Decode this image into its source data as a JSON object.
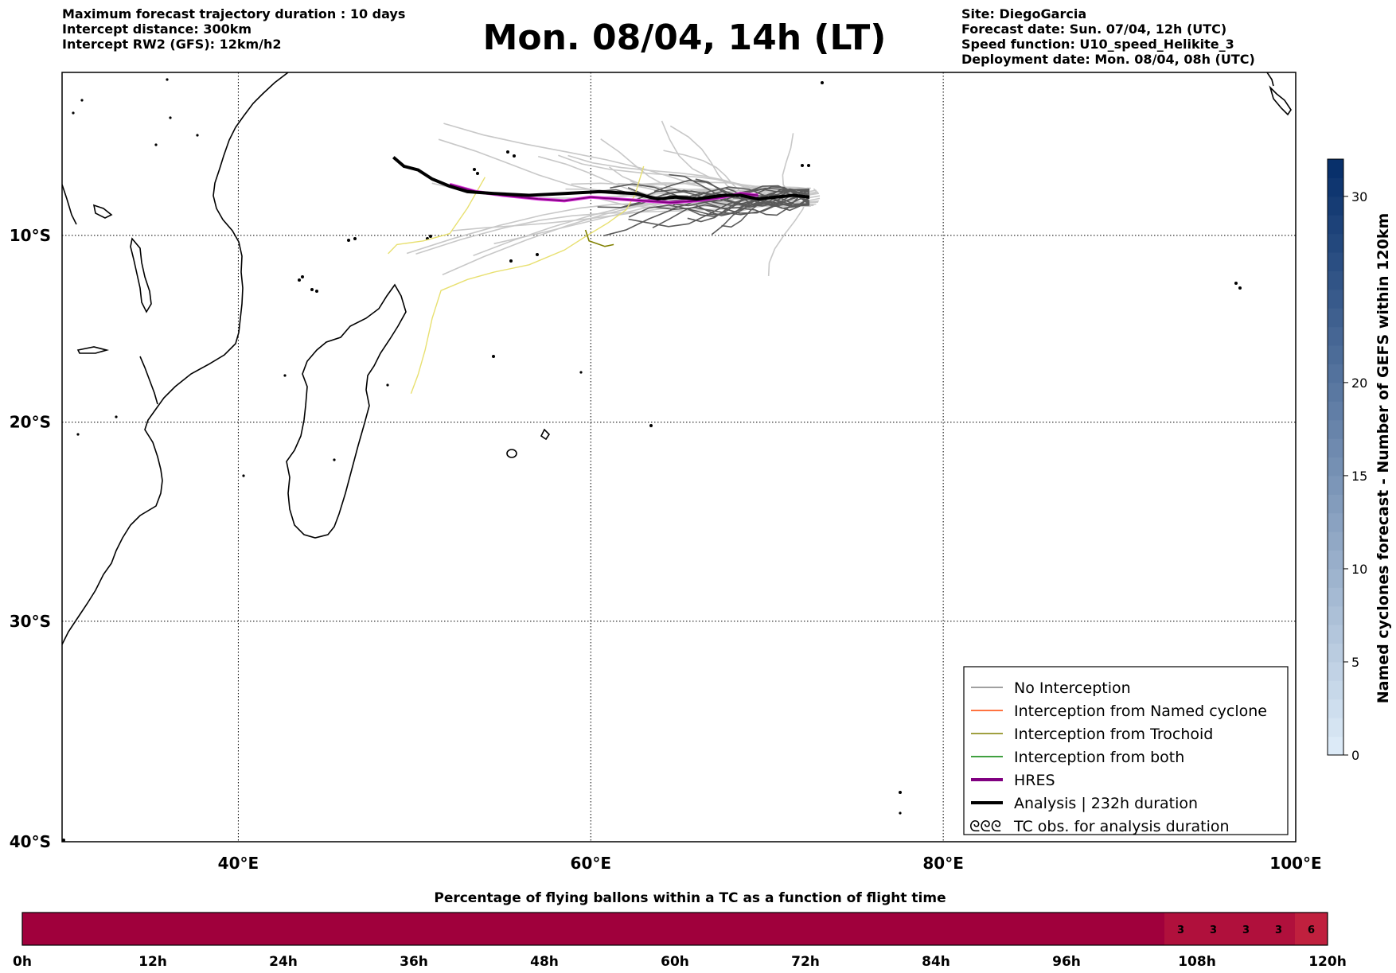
{
  "header": {
    "left_lines": [
      "Maximum forecast trajectory duration : 10 days",
      "Intercept distance: 300km",
      "Intercept RW2 (GFS):  12km/h2"
    ],
    "title": "Mon. 08/04, 14h (LT)",
    "right_lines": [
      "Site: DiegoGarcia",
      "Forecast date: Sun. 07/04, 12h (UTC)",
      "Speed function: U10_speed_Helikite_3",
      "Deployment date: Mon. 08/04, 08h (UTC)"
    ]
  },
  "map": {
    "lon_range": [
      30,
      100
    ],
    "lat_range": [
      -40,
      -1
    ],
    "lon_ticks": [
      {
        "v": 40,
        "label": "40°E"
      },
      {
        "v": 60,
        "label": "60°E"
      },
      {
        "v": 80,
        "label": "80°E"
      },
      {
        "v": 100,
        "label": "100°E"
      }
    ],
    "lat_ticks": [
      {
        "v": -10,
        "label": "10°S"
      },
      {
        "v": -20,
        "label": "20°S"
      },
      {
        "v": -30,
        "label": "30°S"
      },
      {
        "v": -40,
        "label": "40°S"
      }
    ],
    "grid": true,
    "grid_style": "dotted"
  },
  "colors": {
    "no_interception": "#808080",
    "named_cyclone": "#ff4500",
    "trochoid": "#808000",
    "both": "#008000",
    "hres": "#800080",
    "analysis": "#000000",
    "ensemble_light": "#c8c8c8",
    "ensemble_dark": "#5a5a5a",
    "yellow_track": "#e8e070",
    "magenta_track": "#e040e0",
    "timeline_fill": "#a0003c",
    "timeline_light": "#c0203e"
  },
  "legend": {
    "placement": "lower-right",
    "items": [
      {
        "label": "No Interception",
        "color": "#808080",
        "style": "thin"
      },
      {
        "label": "Interception from Named cyclone",
        "color": "#ff4500",
        "style": "thin"
      },
      {
        "label": "Interception from Trochoid",
        "color": "#808000",
        "style": "thin"
      },
      {
        "label": "Interception from both",
        "color": "#008000",
        "style": "thin"
      },
      {
        "label": "HRES",
        "color": "#800080",
        "style": "thick"
      },
      {
        "label": "Analysis | 232h duration",
        "color": "#000000",
        "style": "thick"
      },
      {
        "label": "TC obs. for analysis duration",
        "color": "#000000",
        "style": "symbol"
      }
    ],
    "symbol_glyph": "ᘓᘓᘓ"
  },
  "colorbar": {
    "label": "Named cyclones forecast - Number of GEFS within 120km",
    "ticks": [
      0,
      5,
      10,
      15,
      20,
      30
    ],
    "max": 32,
    "cmap_from": "#dceaf7",
    "cmap_to": "#08306b"
  },
  "tracks": {
    "analysis": [
      [
        48.8,
        -5.7
      ],
      [
        49.4,
        -6.2
      ],
      [
        50.2,
        -6.4
      ],
      [
        51.0,
        -6.9
      ],
      [
        52.0,
        -7.3
      ],
      [
        53.0,
        -7.6
      ],
      [
        54.5,
        -7.7
      ],
      [
        56.5,
        -7.8
      ],
      [
        58.5,
        -7.7
      ],
      [
        60.5,
        -7.6
      ],
      [
        62.5,
        -7.7
      ],
      [
        63.8,
        -8.0
      ],
      [
        64.8,
        -7.9
      ],
      [
        66.0,
        -8.0
      ],
      [
        67.5,
        -7.8
      ],
      [
        68.5,
        -7.8
      ],
      [
        69.5,
        -8.0
      ],
      [
        70.5,
        -7.9
      ],
      [
        71.5,
        -7.8
      ],
      [
        72.4,
        -7.9
      ]
    ],
    "hres": [
      [
        52.0,
        -7.2
      ],
      [
        53.5,
        -7.6
      ],
      [
        55.0,
        -7.8
      ],
      [
        57.0,
        -8.0
      ],
      [
        58.5,
        -8.1
      ],
      [
        60.0,
        -7.9
      ],
      [
        61.5,
        -8.0
      ],
      [
        63.0,
        -8.1
      ],
      [
        64.5,
        -8.2
      ],
      [
        66.0,
        -8.1
      ],
      [
        67.5,
        -7.9
      ],
      [
        68.5,
        -7.7
      ],
      [
        69.5,
        -7.8
      ]
    ],
    "trochoid": [
      [
        59.7,
        -9.7
      ],
      [
        59.9,
        -10.3
      ],
      [
        60.8,
        -10.6
      ],
      [
        61.3,
        -10.5
      ]
    ],
    "yellow": [
      [
        [
          48.5,
          -11.0
        ],
        [
          49.0,
          -10.5
        ],
        [
          50.5,
          -10.3
        ],
        [
          52.0,
          -9.9
        ],
        [
          53.0,
          -8.5
        ],
        [
          54.0,
          -6.8
        ]
      ],
      [
        [
          49.8,
          -18.5
        ],
        [
          50.2,
          -17.5
        ],
        [
          50.6,
          -16.2
        ],
        [
          51.0,
          -14.5
        ],
        [
          51.5,
          -13.0
        ],
        [
          53.0,
          -12.4
        ],
        [
          54.5,
          -12.0
        ],
        [
          56.5,
          -11.6
        ],
        [
          58.5,
          -10.8
        ],
        [
          59.8,
          -10.0
        ],
        [
          61.0,
          -9.3
        ],
        [
          62.0,
          -8.6
        ],
        [
          62.5,
          -7.8
        ],
        [
          63.0,
          -6.2
        ]
      ]
    ]
  },
  "timeline": {
    "title": "Percentage of flying ballons within a TC as a function of flight time",
    "ticks": [
      "0h",
      "12h",
      "24h",
      "36h",
      "48h",
      "60h",
      "72h",
      "84h",
      "96h",
      "108h",
      "120h"
    ],
    "max_hours": 120,
    "dark_until_hours": 105,
    "cells": [
      {
        "start_hours": 105,
        "value": "3"
      },
      {
        "start_hours": 108,
        "value": "3"
      },
      {
        "start_hours": 111,
        "value": "3"
      },
      {
        "start_hours": 114,
        "value": "3"
      },
      {
        "start_hours": 117,
        "value": "6"
      }
    ]
  }
}
